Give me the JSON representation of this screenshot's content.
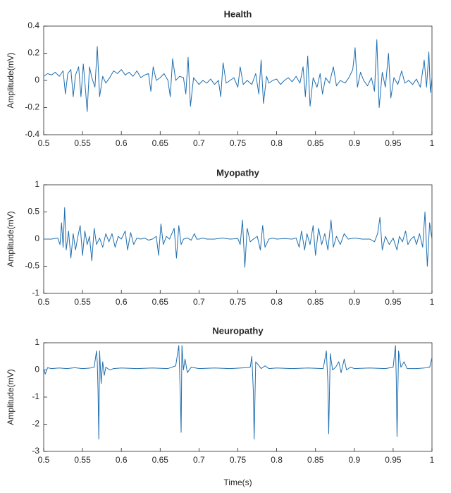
{
  "chart_data": [
    {
      "type": "line",
      "title": "Health",
      "ylabel": "Amplitude(mV)",
      "color": "#1f6fb0",
      "xlim": [
        0.5,
        1
      ],
      "xticks": [
        0.5,
        0.55,
        0.6,
        0.65,
        0.7,
        0.75,
        0.8,
        0.85,
        0.9,
        0.95,
        1
      ],
      "ylim": [
        -0.4,
        0.4
      ],
      "yticks": [
        -0.4,
        -0.2,
        0,
        0.2,
        0.4
      ],
      "x": [
        0.5,
        0.505,
        0.51,
        0.515,
        0.52,
        0.525,
        0.528,
        0.531,
        0.535,
        0.538,
        0.541,
        0.545,
        0.548,
        0.551,
        0.554,
        0.556,
        0.559,
        0.562,
        0.566,
        0.569,
        0.572,
        0.576,
        0.58,
        0.585,
        0.59,
        0.595,
        0.6,
        0.605,
        0.61,
        0.615,
        0.62,
        0.625,
        0.63,
        0.635,
        0.638,
        0.641,
        0.645,
        0.65,
        0.655,
        0.66,
        0.663,
        0.666,
        0.67,
        0.675,
        0.68,
        0.683,
        0.686,
        0.689,
        0.693,
        0.7,
        0.705,
        0.71,
        0.715,
        0.72,
        0.725,
        0.728,
        0.731,
        0.735,
        0.74,
        0.745,
        0.75,
        0.753,
        0.757,
        0.762,
        0.768,
        0.773,
        0.777,
        0.78,
        0.783,
        0.787,
        0.79,
        0.795,
        0.8,
        0.805,
        0.81,
        0.815,
        0.82,
        0.825,
        0.83,
        0.834,
        0.837,
        0.84,
        0.843,
        0.847,
        0.852,
        0.856,
        0.859,
        0.863,
        0.868,
        0.873,
        0.877,
        0.882,
        0.888,
        0.893,
        0.898,
        0.901,
        0.904,
        0.908,
        0.912,
        0.917,
        0.922,
        0.926,
        0.929,
        0.932,
        0.936,
        0.94,
        0.944,
        0.947,
        0.951,
        0.956,
        0.961,
        0.965,
        0.97,
        0.975,
        0.98,
        0.985,
        0.99,
        0.993,
        0.996,
        0.998,
        1
      ],
      "values": [
        0.03,
        0.05,
        0.04,
        0.06,
        0.03,
        0.07,
        -0.1,
        0.05,
        0.08,
        -0.12,
        0.04,
        0.1,
        -0.12,
        0.12,
        -0.08,
        -0.23,
        0.1,
        0.02,
        -0.05,
        0.25,
        -0.12,
        0.03,
        -0.02,
        0.02,
        0.07,
        0.05,
        0.08,
        0.04,
        0.06,
        0.03,
        0.07,
        0.02,
        0.04,
        0.05,
        -0.08,
        0.1,
        0,
        0.02,
        0.05,
        0,
        -0.12,
        0.16,
        0,
        0.03,
        0.02,
        -0.1,
        0.17,
        -0.19,
        0.02,
        -0.03,
        0,
        -0.02,
        0.01,
        -0.03,
        0,
        -0.12,
        0.13,
        -0.02,
        0,
        0.02,
        -0.05,
        0.1,
        -0.03,
        0,
        -0.03,
        0.05,
        -0.1,
        0.15,
        -0.17,
        0.03,
        -0.02,
        0,
        0.01,
        -0.03,
        0,
        0.02,
        -0.01,
        0.03,
        -0.02,
        0.1,
        -0.12,
        0.18,
        -0.19,
        0.02,
        -0.05,
        0.05,
        -0.1,
        0.02,
        -0.02,
        0.1,
        -0.04,
        0,
        -0.02,
        0.02,
        0.08,
        0.24,
        -0.05,
        0.06,
        0,
        -0.04,
        0.02,
        -0.08,
        0.3,
        -0.2,
        0.06,
        -0.05,
        0.2,
        -0.13,
        0.02,
        -0.03,
        0.07,
        -0.02,
        0,
        -0.03,
        0.01,
        -0.05,
        0.15,
        -0.05,
        0.21,
        -0.09,
        0.02
      ]
    },
    {
      "type": "line",
      "title": "Myopathy",
      "ylabel": "Amplitude(mV)",
      "color": "#1f6fb0",
      "xlim": [
        0.5,
        1
      ],
      "xticks": [
        0.5,
        0.55,
        0.6,
        0.65,
        0.7,
        0.75,
        0.8,
        0.85,
        0.9,
        0.95,
        1
      ],
      "ylim": [
        -1,
        1
      ],
      "yticks": [
        -1,
        -0.5,
        0,
        0.5,
        1
      ],
      "x": [
        0.5,
        0.51,
        0.518,
        0.521,
        0.523,
        0.525,
        0.527,
        0.529,
        0.532,
        0.535,
        0.538,
        0.541,
        0.544,
        0.547,
        0.55,
        0.553,
        0.556,
        0.559,
        0.562,
        0.565,
        0.568,
        0.572,
        0.576,
        0.58,
        0.584,
        0.588,
        0.592,
        0.596,
        0.6,
        0.605,
        0.608,
        0.612,
        0.616,
        0.62,
        0.625,
        0.63,
        0.635,
        0.64,
        0.645,
        0.648,
        0.651,
        0.654,
        0.658,
        0.662,
        0.668,
        0.671,
        0.674,
        0.677,
        0.68,
        0.685,
        0.69,
        0.694,
        0.697,
        0.7,
        0.705,
        0.71,
        0.72,
        0.73,
        0.74,
        0.75,
        0.753,
        0.756,
        0.759,
        0.762,
        0.766,
        0.77,
        0.775,
        0.779,
        0.782,
        0.785,
        0.79,
        0.795,
        0.8,
        0.81,
        0.82,
        0.825,
        0.829,
        0.832,
        0.836,
        0.839,
        0.843,
        0.847,
        0.85,
        0.854,
        0.858,
        0.862,
        0.866,
        0.87,
        0.873,
        0.877,
        0.882,
        0.887,
        0.892,
        0.9,
        0.91,
        0.92,
        0.926,
        0.93,
        0.933,
        0.936,
        0.94,
        0.945,
        0.95,
        0.955,
        0.958,
        0.962,
        0.966,
        0.969,
        0.973,
        0.977,
        0.98,
        0.984,
        0.988,
        0.991,
        0.994,
        0.997,
        1
      ],
      "values": [
        0,
        0,
        0.02,
        -0.1,
        0.3,
        -0.15,
        0.58,
        -0.2,
        0.15,
        -0.35,
        0.1,
        -0.2,
        0.05,
        0.25,
        -0.3,
        0.15,
        -0.1,
        0.05,
        -0.4,
        0.2,
        -0.1,
        0.02,
        -0.15,
        0.1,
        -0.05,
        0.1,
        -0.15,
        0.05,
        0,
        0.15,
        -0.2,
        0.12,
        -0.1,
        0.02,
        0,
        0.02,
        -0.02,
        0,
        0.05,
        -0.3,
        0.28,
        -0.1,
        0.05,
        0,
        0.2,
        -0.35,
        0.25,
        -0.1,
        0,
        0.02,
        -0.02,
        0.1,
        0,
        0,
        0.02,
        0,
        0,
        0.02,
        0,
        0.01,
        -0.1,
        0.35,
        -0.52,
        0.2,
        -0.05,
        0,
        0.05,
        -0.2,
        0.25,
        -0.15,
        0,
        0.02,
        0,
        0.01,
        0,
        0.02,
        -0.15,
        0.15,
        -0.2,
        0.1,
        -0.1,
        0.25,
        -0.3,
        0.2,
        -0.1,
        0.1,
        -0.2,
        0.35,
        -0.15,
        0.05,
        -0.1,
        0.1,
        0,
        0.02,
        0,
        0,
        -0.05,
        0.1,
        0.4,
        -0.2,
        0.05,
        -0.1,
        0.02,
        -0.2,
        0.05,
        -0.05,
        0.15,
        -0.1,
        0,
        0.05,
        -0.1,
        0.1,
        -0.15,
        0.5,
        -0.5,
        0.3,
        0
      ]
    },
    {
      "type": "line",
      "title": "Neuropathy",
      "xlabel": "Time(s)",
      "ylabel": "Amplitude(mV)",
      "color": "#1f6fb0",
      "xlim": [
        0.5,
        1
      ],
      "xticks": [
        0.5,
        0.55,
        0.6,
        0.65,
        0.7,
        0.75,
        0.8,
        0.85,
        0.9,
        0.95,
        1
      ],
      "ylim": [
        -3,
        1
      ],
      "yticks": [
        -3,
        -2,
        -1,
        0,
        1
      ],
      "x": [
        0.5,
        0.502,
        0.505,
        0.51,
        0.52,
        0.53,
        0.54,
        0.55,
        0.56,
        0.565,
        0.568,
        0.569,
        0.57,
        0.571,
        0.572,
        0.574,
        0.576,
        0.578,
        0.58,
        0.585,
        0.59,
        0.6,
        0.62,
        0.64,
        0.66,
        0.67,
        0.674,
        0.676,
        0.677,
        0.678,
        0.68,
        0.682,
        0.685,
        0.69,
        0.7,
        0.72,
        0.74,
        0.76,
        0.766,
        0.768,
        0.77,
        0.771,
        0.773,
        0.776,
        0.78,
        0.785,
        0.79,
        0.8,
        0.82,
        0.84,
        0.86,
        0.864,
        0.866,
        0.867,
        0.869,
        0.872,
        0.876,
        0.88,
        0.883,
        0.887,
        0.89,
        0.895,
        0.9,
        0.92,
        0.94,
        0.95,
        0.953,
        0.954,
        0.955,
        0.957,
        0.96,
        0.964,
        0.968,
        0.98,
        0.99,
        0.997,
        1
      ],
      "values": [
        0.05,
        -0.15,
        0.08,
        0.05,
        0.07,
        0.05,
        0.08,
        0.05,
        0.07,
        0.1,
        0.7,
        0.3,
        -0.8,
        -2.55,
        0.7,
        -0.5,
        0.3,
        -0.2,
        0.1,
        0,
        0.05,
        0.07,
        0.05,
        0.07,
        0.05,
        0.15,
        0.9,
        -1,
        -2.3,
        0.9,
        0,
        0.4,
        -0.1,
        0.1,
        0.05,
        0.07,
        0.05,
        0.08,
        0.1,
        0.5,
        -0.8,
        -2.55,
        0.3,
        0.2,
        0.05,
        0.15,
        0.05,
        0.07,
        0.05,
        0.07,
        0.05,
        0.7,
        -0.5,
        -2.35,
        0.6,
        0,
        0.1,
        0.3,
        -0.1,
        0.4,
        0,
        0.1,
        0.05,
        0.07,
        0.05,
        0.1,
        0.9,
        -0.3,
        -2.45,
        0.7,
        0.1,
        0.3,
        0.05,
        0.05,
        0.07,
        0.1,
        0.45
      ]
    }
  ]
}
